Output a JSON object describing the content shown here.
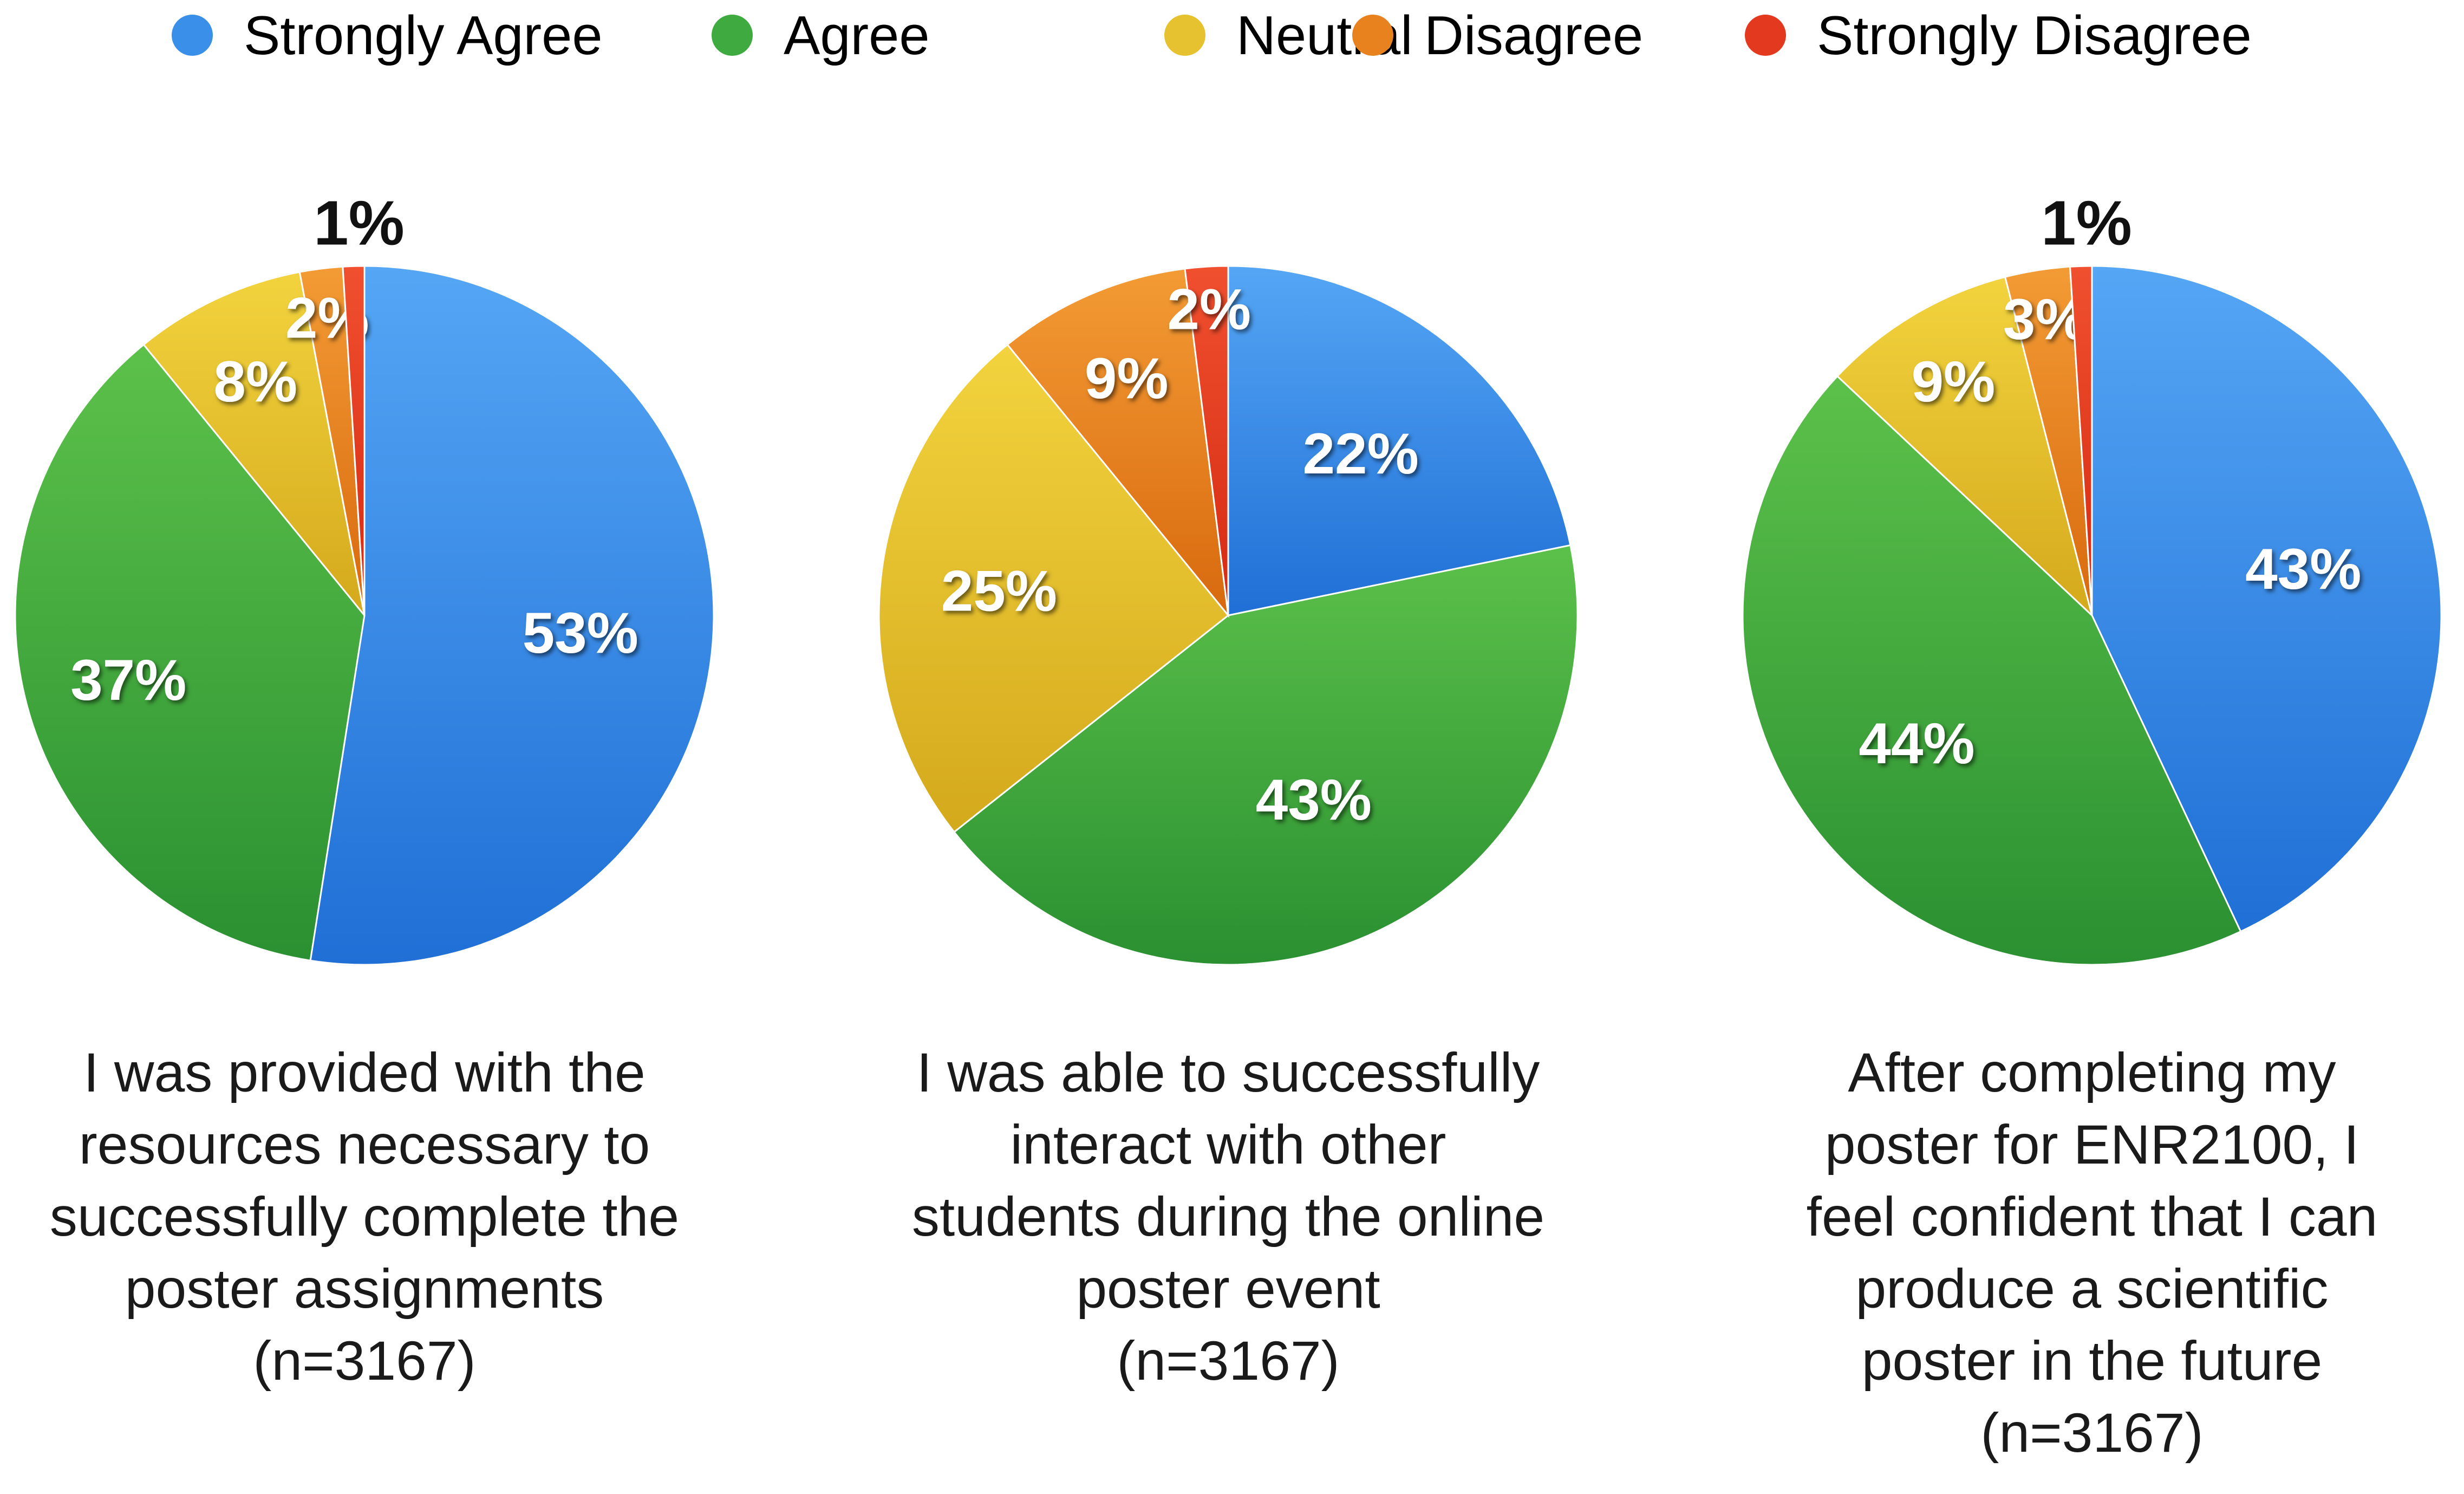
{
  "legend": [
    {
      "label": "Strongly Agree",
      "color": "#3a8fe8"
    },
    {
      "label": "Agree",
      "color": "#3faa3f"
    },
    {
      "label": "Neutral",
      "color": "#e6c230"
    },
    {
      "label": "Disagree",
      "color": "#e8821e"
    },
    {
      "label": "Strongly Disagree",
      "color": "#e33a1f"
    }
  ],
  "chart_data": [
    {
      "type": "pie",
      "categories": [
        "Strongly Agree",
        "Agree",
        "Neutral",
        "Disagree",
        "Strongly Disagree"
      ],
      "values": [
        53,
        37,
        8,
        2,
        1
      ],
      "slice_labels": [
        "53%",
        "37%",
        "8%",
        "2%",
        "1%"
      ],
      "caption_lines": [
        "I was provided with the",
        "resources necessary to",
        "successfully complete the",
        "poster assignments",
        "(n=3167)"
      ]
    },
    {
      "type": "pie",
      "categories": [
        "Strongly Agree",
        "Agree",
        "Neutral",
        "Disagree",
        "Strongly Disagree"
      ],
      "values": [
        22,
        43,
        25,
        9,
        2
      ],
      "slice_labels": [
        "22%",
        "43%",
        "25%",
        "9%",
        "2%"
      ],
      "caption_lines": [
        "I was able to successfully",
        "interact with other",
        "students during the online",
        "poster event",
        "(n=3167)"
      ]
    },
    {
      "type": "pie",
      "categories": [
        "Strongly Agree",
        "Agree",
        "Neutral",
        "Disagree",
        "Strongly Disagree"
      ],
      "values": [
        43,
        44,
        9,
        3,
        1
      ],
      "slice_labels": [
        "43%",
        "44%",
        "9%",
        "3%",
        "1%"
      ],
      "caption_lines": [
        "After completing my",
        "poster for ENR2100, I",
        "feel confident that I can",
        "produce a scientific",
        "poster in the future",
        "(n=3167)"
      ]
    }
  ]
}
